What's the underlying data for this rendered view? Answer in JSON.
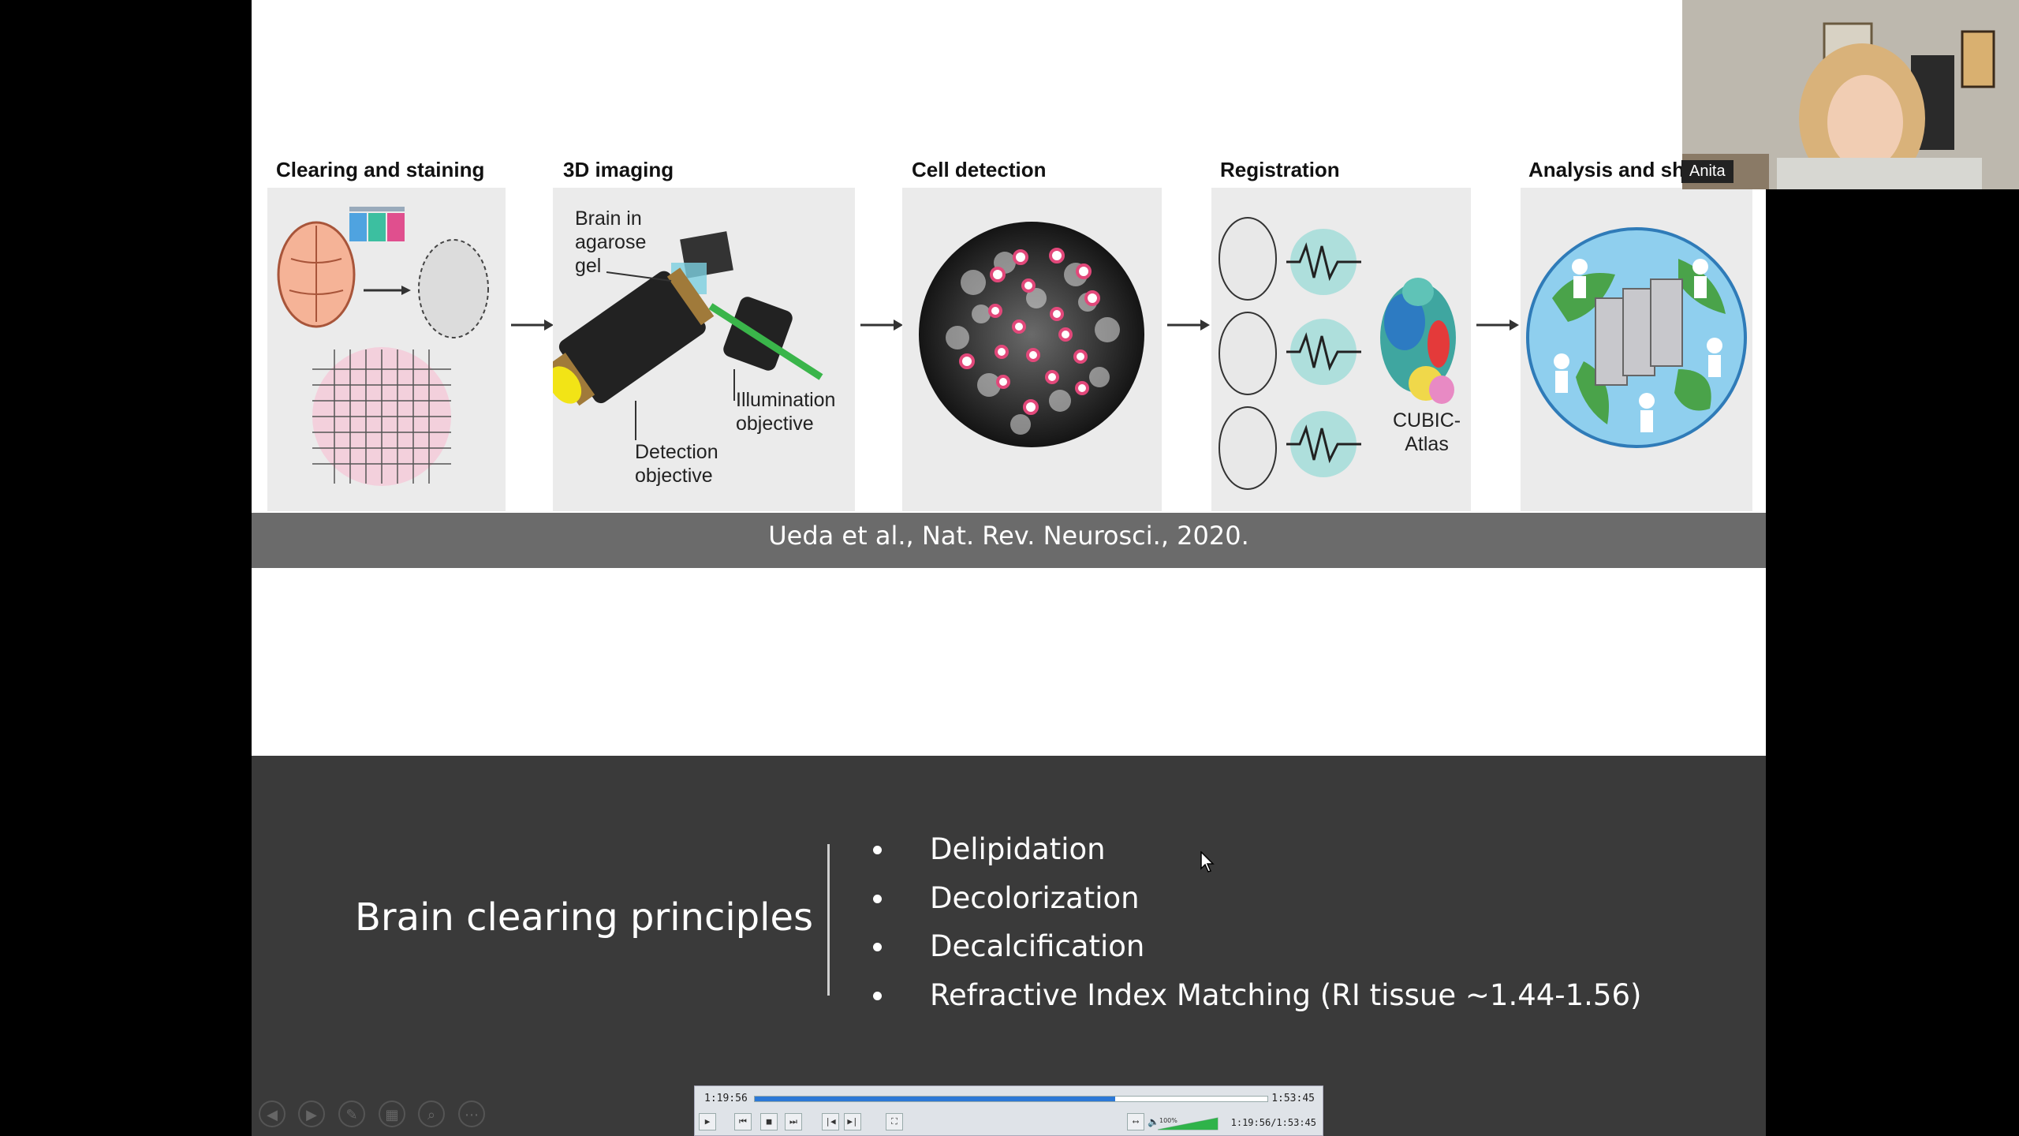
{
  "slide": {
    "figure": {
      "panel_titles": [
        "Clearing and staining",
        "3D imaging",
        "Cell detection",
        "Registration",
        "Analysis and sh"
      ],
      "imaging_labels": {
        "brain_in_gel": [
          "Brain in",
          "agarose",
          "gel"
        ],
        "illumination": [
          "Illumination",
          "objective"
        ],
        "detection": [
          "Detection",
          "objective"
        ]
      },
      "registration_label": [
        "CUBIC-",
        "Atlas"
      ],
      "caption": "Ueda et al., Nat. Rev. Neurosci., 2020."
    },
    "principles": {
      "title": "Brain clearing principles",
      "bullets": [
        "Delipidation",
        "Decolorization",
        "Decalcification",
        "Refractive Index Matching (RI tissue ~1.44-1.56)"
      ]
    }
  },
  "player": {
    "current_time": "1:19:56",
    "total_time": "1:53:45",
    "combined_time": "1:19:56/1:53:45",
    "progress_fraction": 0.703,
    "volume_label": "100%",
    "volume_fraction": 1.0
  },
  "webcam": {
    "participant_name": "Anita"
  },
  "slide_controls": [
    "previous-icon",
    "next-icon",
    "pen-icon",
    "slides-grid-icon",
    "zoom-icon",
    "more-icon"
  ],
  "colors": {
    "progress": "#2b78d6",
    "volume": "#2fb34a",
    "caption_bar": "#6b6b6b",
    "dark_band": "#3a3a3a"
  }
}
